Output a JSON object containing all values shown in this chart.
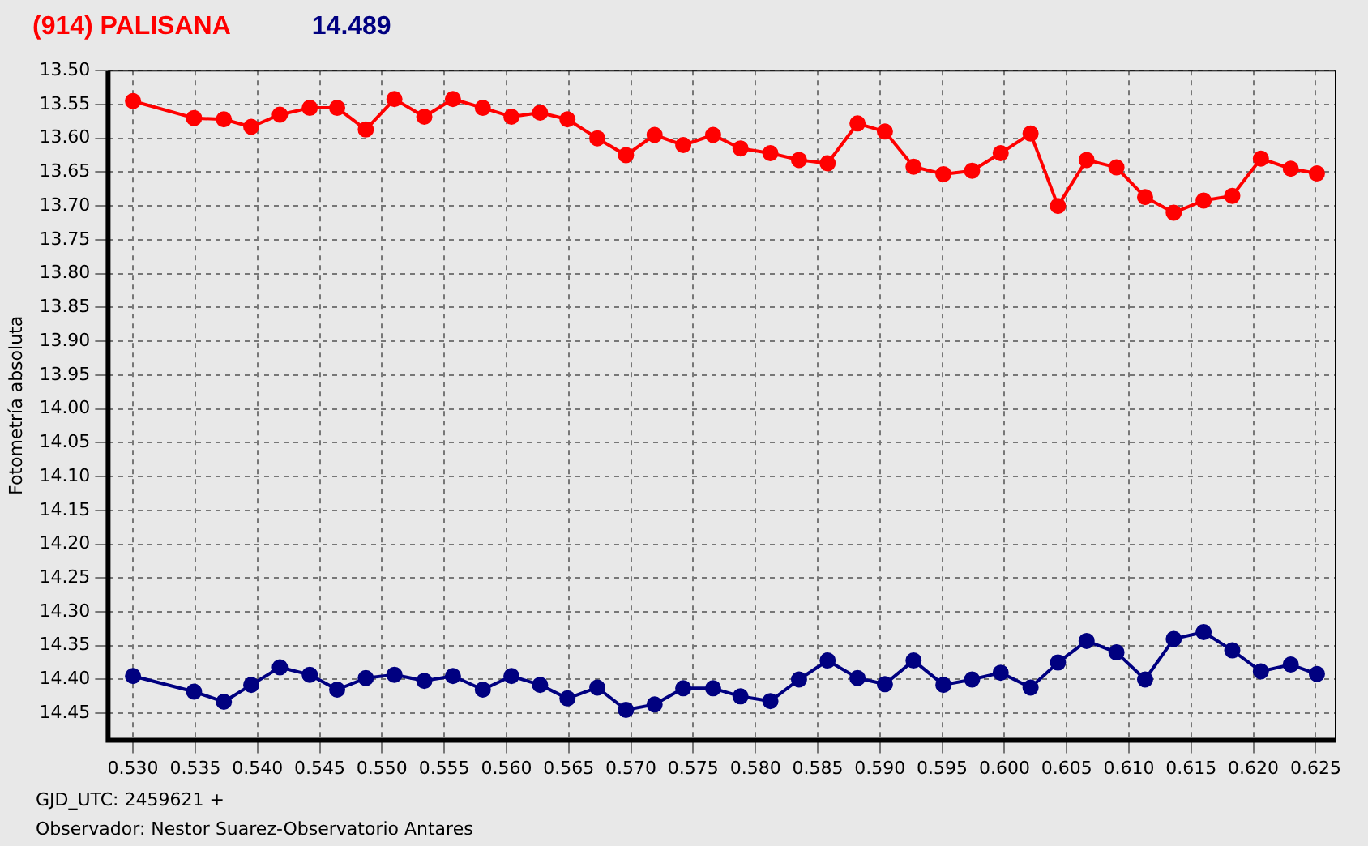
{
  "chart_data": {
    "type": "line",
    "title": "(914) PALISANA",
    "subtitle": "14.489",
    "ylabel": "Fotometría absoluta",
    "annotations": [
      "GJD_UTC: 2459621 +",
      "Observador: Nestor Suarez-Observatorio Antares"
    ],
    "x": [
      0.53,
      0.5349,
      0.5373,
      0.5395,
      0.5418,
      0.5442,
      0.5464,
      0.5487,
      0.551,
      0.5534,
      0.5557,
      0.5581,
      0.5604,
      0.5627,
      0.5649,
      0.5673,
      0.5696,
      0.5719,
      0.5742,
      0.5766,
      0.5788,
      0.5812,
      0.5835,
      0.5858,
      0.5882,
      0.5904,
      0.5927,
      0.5951,
      0.5974,
      0.5997,
      0.6021,
      0.6043,
      0.6066,
      0.609,
      0.6113,
      0.6136,
      0.616,
      0.6183,
      0.6206,
      0.623,
      0.6251
    ],
    "series": [
      {
        "color": "#ff0000",
        "values": [
          13.545,
          13.57,
          13.572,
          13.583,
          13.565,
          13.555,
          13.555,
          13.587,
          13.542,
          13.568,
          13.542,
          13.555,
          13.568,
          13.562,
          13.572,
          13.6,
          13.625,
          13.595,
          13.61,
          13.595,
          13.615,
          13.622,
          13.632,
          13.637,
          13.578,
          13.59,
          13.642,
          13.653,
          13.648,
          13.622,
          13.593,
          13.7,
          13.632,
          13.643,
          13.687,
          13.71,
          13.692,
          13.685,
          13.63,
          13.645,
          13.652
        ]
      },
      {
        "color": "#000080",
        "values": [
          14.395,
          14.418,
          14.433,
          14.408,
          14.382,
          14.393,
          14.415,
          14.398,
          14.393,
          14.402,
          14.395,
          14.415,
          14.395,
          14.408,
          14.428,
          14.412,
          14.445,
          14.437,
          14.413,
          14.413,
          14.425,
          14.432,
          14.4,
          14.372,
          14.398,
          14.407,
          14.372,
          14.408,
          14.4,
          14.39,
          14.412,
          14.375,
          14.343,
          14.36,
          14.4,
          14.34,
          14.33,
          14.357,
          14.388,
          14.378,
          14.392
        ]
      }
    ],
    "xlim": [
      0.528,
      0.6266
    ],
    "xticks": [
      {
        "value": 0.53,
        "label": "0.530"
      },
      {
        "value": 0.535,
        "label": "0.535"
      },
      {
        "value": 0.54,
        "label": "0.540"
      },
      {
        "value": 0.545,
        "label": "0.545"
      },
      {
        "value": 0.55,
        "label": "0.550"
      },
      {
        "value": 0.555,
        "label": "0.555"
      },
      {
        "value": 0.56,
        "label": "0.560"
      },
      {
        "value": 0.565,
        "label": "0.565"
      },
      {
        "value": 0.57,
        "label": "0.570"
      },
      {
        "value": 0.575,
        "label": "0.575"
      },
      {
        "value": 0.58,
        "label": "0.580"
      },
      {
        "value": 0.585,
        "label": "0.585"
      },
      {
        "value": 0.59,
        "label": "0.590"
      },
      {
        "value": 0.595,
        "label": "0.595"
      },
      {
        "value": 0.6,
        "label": "0.600"
      },
      {
        "value": 0.605,
        "label": "0.605"
      },
      {
        "value": 0.61,
        "label": "0.610"
      },
      {
        "value": 0.615,
        "label": "0.615"
      },
      {
        "value": 0.62,
        "label": "0.620"
      },
      {
        "value": 0.625,
        "label": "0.625"
      }
    ],
    "ylim": [
      14.49,
      13.5
    ],
    "yticks": [
      {
        "value": 13.5,
        "label": "13.50"
      },
      {
        "value": 13.55,
        "label": "13.55"
      },
      {
        "value": 13.6,
        "label": "13.60"
      },
      {
        "value": 13.65,
        "label": "13.65"
      },
      {
        "value": 13.7,
        "label": "13.70"
      },
      {
        "value": 13.75,
        "label": "13.75"
      },
      {
        "value": 13.8,
        "label": "13.80"
      },
      {
        "value": 13.85,
        "label": "13.85"
      },
      {
        "value": 13.9,
        "label": "13.90"
      },
      {
        "value": 13.95,
        "label": "13.95"
      },
      {
        "value": 14.0,
        "label": "14.00"
      },
      {
        "value": 14.05,
        "label": "14.05"
      },
      {
        "value": 14.1,
        "label": "14.10"
      },
      {
        "value": 14.15,
        "label": "14.15"
      },
      {
        "value": 14.2,
        "label": "14.20"
      },
      {
        "value": 14.25,
        "label": "14.25"
      },
      {
        "value": 14.3,
        "label": "14.30"
      },
      {
        "value": 14.35,
        "label": "14.35"
      },
      {
        "value": 14.4,
        "label": "14.40"
      },
      {
        "value": 14.45,
        "label": "14.45"
      }
    ],
    "grid": true,
    "legend": false,
    "marker": "circle",
    "line_style": "solid"
  }
}
